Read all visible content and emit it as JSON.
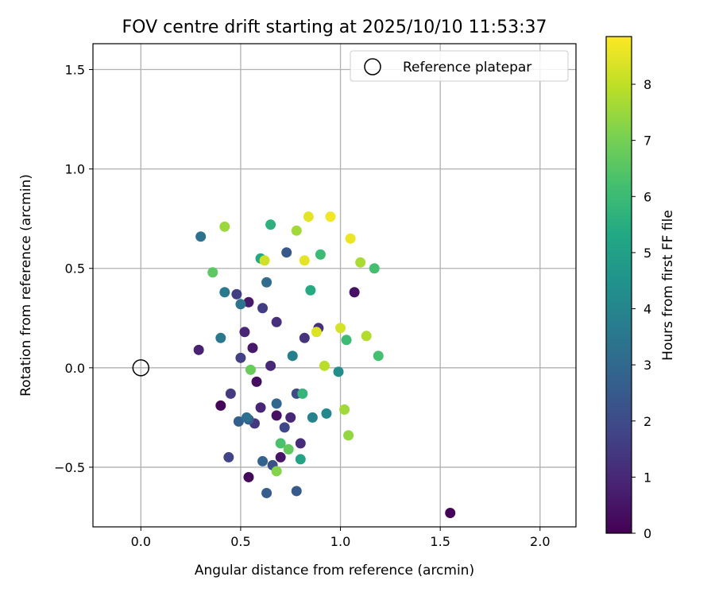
{
  "chart_data": {
    "type": "scatter",
    "title": "FOV centre drift starting at 2025/10/10 11:53:37",
    "xlabel": "Angular distance from reference (arcmin)",
    "ylabel": "Rotation from reference (arcmin)",
    "xlim": [
      -0.24,
      2.18
    ],
    "ylim": [
      -0.8,
      1.63
    ],
    "xticks": [
      0.0,
      0.5,
      1.0,
      1.5,
      2.0
    ],
    "xtick_labels": [
      "0.0",
      "0.5",
      "1.0",
      "1.5",
      "2.0"
    ],
    "yticks": [
      -0.5,
      0.0,
      0.5,
      1.0,
      1.5
    ],
    "ytick_labels": [
      "−0.5",
      "0.0",
      "0.5",
      "1.0",
      "1.5"
    ],
    "grid": true,
    "legend": {
      "label": "Reference platepar",
      "location": "upper right"
    },
    "reference_point": {
      "x": 0.0,
      "y": 0.0
    },
    "colorbar": {
      "label": "Hours from first FF file",
      "colormap": "viridis",
      "range": [
        0,
        8.85
      ],
      "ticks": [
        0,
        1,
        2,
        3,
        4,
        5,
        6,
        7,
        8
      ],
      "tick_labels": [
        "0",
        "1",
        "2",
        "3",
        "4",
        "5",
        "6",
        "7",
        "8"
      ]
    },
    "points": [
      {
        "x": 1.55,
        "y": -0.73,
        "h": 0.1
      },
      {
        "x": 0.4,
        "y": -0.19,
        "h": 0.1
      },
      {
        "x": 0.54,
        "y": -0.55,
        "h": 0.2
      },
      {
        "x": 0.29,
        "y": 0.09,
        "h": 0.8
      },
      {
        "x": 0.68,
        "y": -0.24,
        "h": 0.4
      },
      {
        "x": 0.7,
        "y": -0.45,
        "h": 0.5
      },
      {
        "x": 0.58,
        "y": -0.07,
        "h": 0.3
      },
      {
        "x": 1.07,
        "y": 0.38,
        "h": 0.4
      },
      {
        "x": 0.54,
        "y": 0.33,
        "h": 0.6
      },
      {
        "x": 0.56,
        "y": 0.1,
        "h": 0.6
      },
      {
        "x": 0.52,
        "y": 0.18,
        "h": 0.9
      },
      {
        "x": 0.6,
        "y": -0.2,
        "h": 0.9
      },
      {
        "x": 0.75,
        "y": -0.25,
        "h": 1.0
      },
      {
        "x": 0.8,
        "y": -0.38,
        "h": 1.1
      },
      {
        "x": 0.68,
        "y": 0.23,
        "h": 1.2
      },
      {
        "x": 0.65,
        "y": 0.01,
        "h": 1.0
      },
      {
        "x": 0.82,
        "y": 0.15,
        "h": 1.3
      },
      {
        "x": 0.89,
        "y": 0.2,
        "h": 1.2
      },
      {
        "x": 0.57,
        "y": -0.28,
        "h": 1.4
      },
      {
        "x": 0.45,
        "y": -0.13,
        "h": 1.5
      },
      {
        "x": 0.48,
        "y": 0.37,
        "h": 1.6
      },
      {
        "x": 0.44,
        "y": -0.45,
        "h": 1.8
      },
      {
        "x": 0.5,
        "y": 0.05,
        "h": 1.7
      },
      {
        "x": 0.61,
        "y": 0.3,
        "h": 1.6
      },
      {
        "x": 0.72,
        "y": -0.3,
        "h": 1.9
      },
      {
        "x": 0.78,
        "y": -0.13,
        "h": 2.0
      },
      {
        "x": 0.66,
        "y": -0.49,
        "h": 2.2
      },
      {
        "x": 0.73,
        "y": 0.58,
        "h": 2.4
      },
      {
        "x": 0.63,
        "y": -0.63,
        "h": 2.6
      },
      {
        "x": 0.78,
        "y": -0.62,
        "h": 2.5
      },
      {
        "x": 0.49,
        "y": -0.27,
        "h": 2.7
      },
      {
        "x": 0.54,
        "y": -0.26,
        "h": 2.6
      },
      {
        "x": 0.61,
        "y": -0.47,
        "h": 2.8
      },
      {
        "x": 0.68,
        "y": -0.18,
        "h": 2.9
      },
      {
        "x": 0.63,
        "y": 0.43,
        "h": 3.1
      },
      {
        "x": 0.5,
        "y": 0.32,
        "h": 3.4
      },
      {
        "x": 0.3,
        "y": 0.66,
        "h": 3.3
      },
      {
        "x": 0.4,
        "y": 0.15,
        "h": 3.5
      },
      {
        "x": 0.42,
        "y": 0.38,
        "h": 3.6
      },
      {
        "x": 0.53,
        "y": -0.25,
        "h": 3.2
      },
      {
        "x": 0.76,
        "y": 0.06,
        "h": 3.8
      },
      {
        "x": 0.86,
        "y": -0.25,
        "h": 3.9
      },
      {
        "x": 0.93,
        "y": -0.23,
        "h": 4.1
      },
      {
        "x": 0.99,
        "y": -0.02,
        "h": 4.3
      },
      {
        "x": 0.8,
        "y": -0.46,
        "h": 5.1
      },
      {
        "x": 0.6,
        "y": 0.55,
        "h": 5.3
      },
      {
        "x": 0.85,
        "y": 0.39,
        "h": 5.4
      },
      {
        "x": 0.65,
        "y": 0.72,
        "h": 5.6
      },
      {
        "x": 0.81,
        "y": -0.13,
        "h": 5.8
      },
      {
        "x": 0.9,
        "y": 0.57,
        "h": 6.0
      },
      {
        "x": 1.03,
        "y": 0.14,
        "h": 6.0
      },
      {
        "x": 1.17,
        "y": 0.5,
        "h": 6.2
      },
      {
        "x": 1.19,
        "y": 0.06,
        "h": 6.2
      },
      {
        "x": 0.7,
        "y": -0.38,
        "h": 6.3
      },
      {
        "x": 0.36,
        "y": 0.48,
        "h": 6.6
      },
      {
        "x": 0.74,
        "y": -0.41,
        "h": 6.7
      },
      {
        "x": 0.55,
        "y": -0.01,
        "h": 6.8
      },
      {
        "x": 0.68,
        "y": -0.52,
        "h": 7.2
      },
      {
        "x": 1.04,
        "y": -0.34,
        "h": 7.4
      },
      {
        "x": 1.02,
        "y": -0.21,
        "h": 7.6
      },
      {
        "x": 1.05,
        "y": 0.65,
        "h": 8.6
      },
      {
        "x": 0.95,
        "y": 0.76,
        "h": 8.7
      },
      {
        "x": 0.84,
        "y": 0.76,
        "h": 8.5
      },
      {
        "x": 0.82,
        "y": 0.54,
        "h": 8.5
      },
      {
        "x": 0.62,
        "y": 0.54,
        "h": 8.2
      },
      {
        "x": 1.0,
        "y": 0.2,
        "h": 8.3
      },
      {
        "x": 0.88,
        "y": 0.18,
        "h": 8.4
      },
      {
        "x": 0.42,
        "y": 0.71,
        "h": 7.5
      },
      {
        "x": 0.78,
        "y": 0.69,
        "h": 7.6
      },
      {
        "x": 1.1,
        "y": 0.53,
        "h": 7.7
      },
      {
        "x": 1.13,
        "y": 0.16,
        "h": 7.8
      },
      {
        "x": 0.92,
        "y": 0.01,
        "h": 7.9
      }
    ]
  }
}
